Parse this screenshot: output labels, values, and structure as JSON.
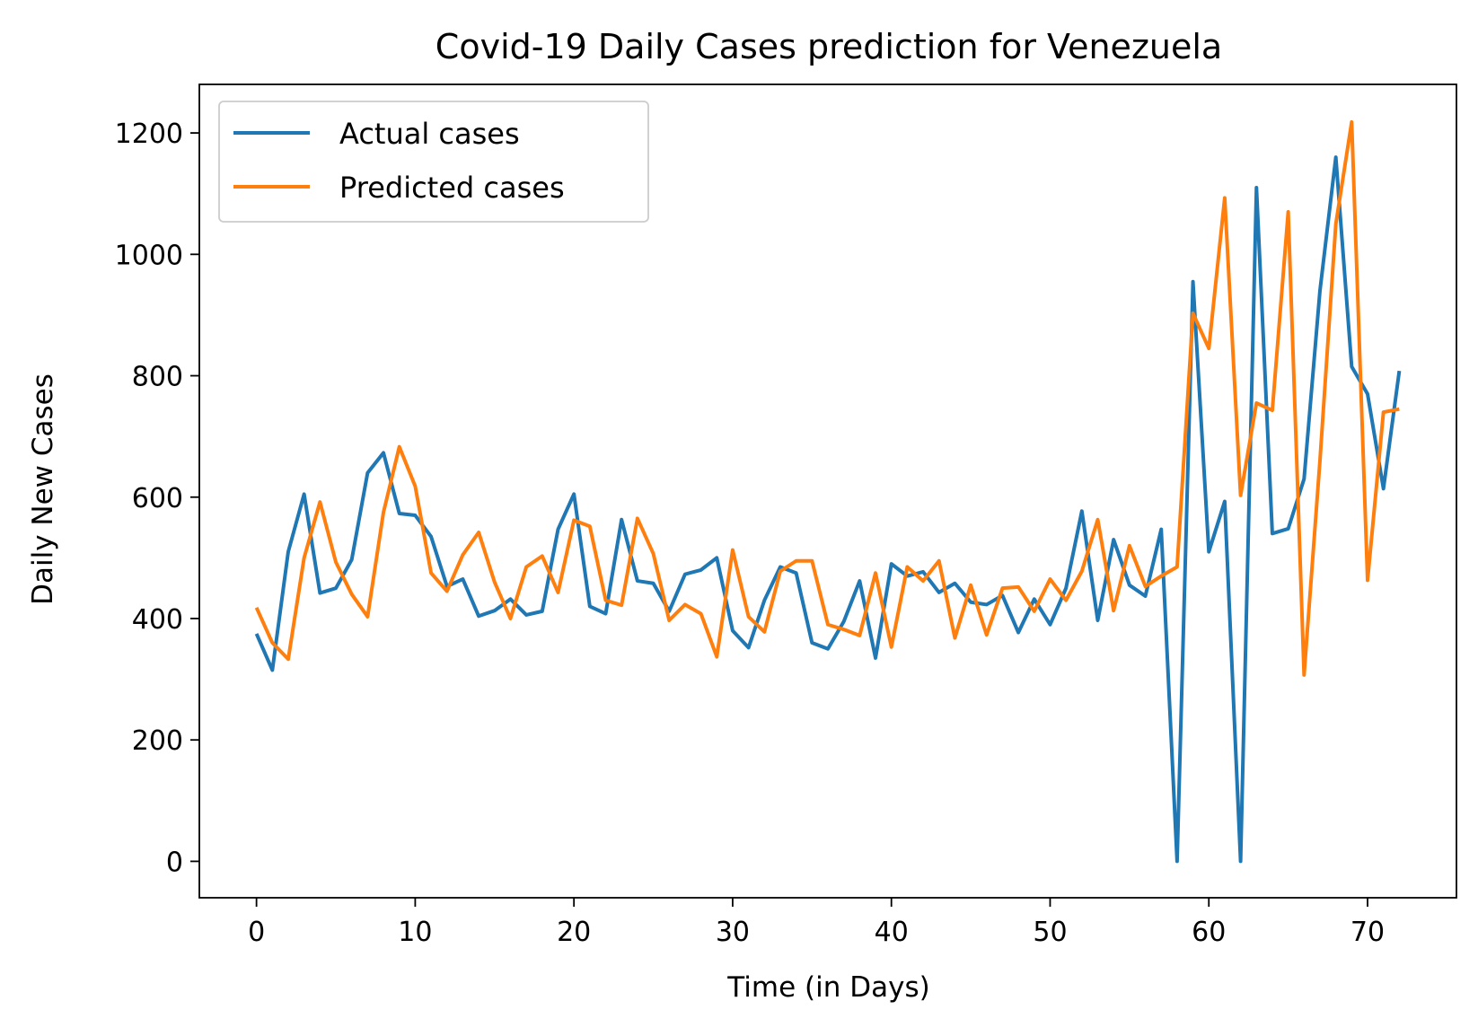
{
  "chart_data": {
    "type": "line",
    "title": "Covid-19 Daily Cases prediction for Venezuela",
    "xlabel": "Time (in Days)",
    "ylabel": "Daily New Cases",
    "xlim": [
      -3.6,
      75.6
    ],
    "ylim": [
      -60,
      1280
    ],
    "xticks": [
      0,
      10,
      20,
      30,
      40,
      50,
      60,
      70
    ],
    "yticks": [
      0,
      200,
      400,
      600,
      800,
      1000,
      1200
    ],
    "grid": false,
    "legend_position": "top-left",
    "series": [
      {
        "name": "Actual cases",
        "color": "#1f77b4",
        "values": [
          375,
          315,
          510,
          605,
          442,
          450,
          497,
          640,
          673,
          573,
          570,
          535,
          453,
          465,
          404,
          413,
          432,
          406,
          412,
          547,
          605,
          420,
          408,
          563,
          462,
          458,
          412,
          473,
          480,
          500,
          380,
          352,
          430,
          485,
          475,
          360,
          350,
          395,
          462,
          335,
          490,
          470,
          477,
          443,
          458,
          427,
          423,
          438,
          377,
          432,
          390,
          450,
          577,
          397,
          530,
          455,
          437,
          547,
          0,
          955,
          510,
          593,
          0,
          1110,
          540,
          548,
          630,
          940,
          1160,
          815,
          770,
          614,
          808
        ]
      },
      {
        "name": "Predicted cases",
        "color": "#ff7f0e",
        "values": [
          418,
          360,
          333,
          500,
          592,
          493,
          440,
          403,
          575,
          683,
          618,
          475,
          445,
          505,
          542,
          460,
          400,
          485,
          503,
          443,
          562,
          552,
          430,
          422,
          565,
          507,
          397,
          423,
          408,
          337,
          513,
          403,
          378,
          478,
          495,
          495,
          390,
          382,
          372,
          475,
          353,
          485,
          462,
          495,
          368,
          455,
          373,
          450,
          452,
          412,
          465,
          430,
          478,
          563,
          413,
          520,
          453,
          470,
          485,
          903,
          845,
          1093,
          603,
          755,
          743,
          1070,
          307,
          660,
          1050,
          1218,
          463,
          740,
          745
        ]
      }
    ]
  }
}
